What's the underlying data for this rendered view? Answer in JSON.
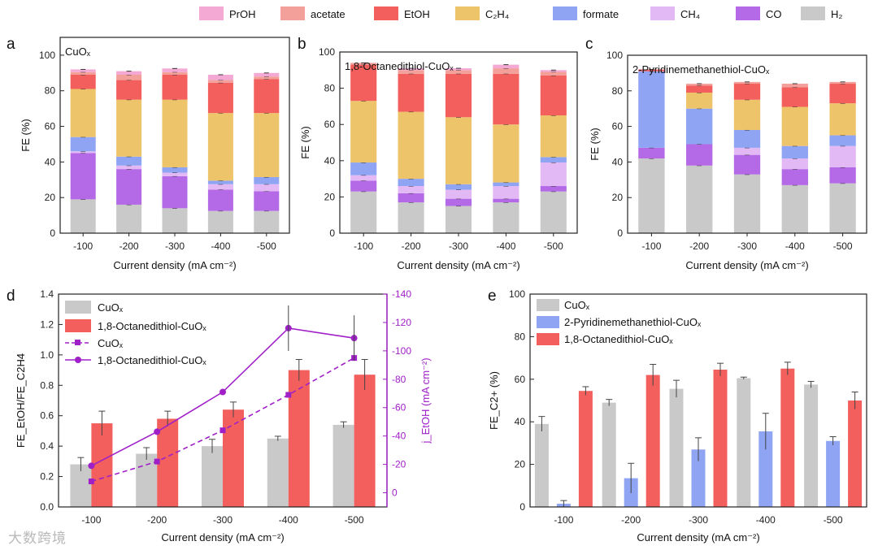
{
  "top_legend": [
    {
      "label": "PrOH",
      "color": "#f4a9d4"
    },
    {
      "label": "acetate",
      "color": "#f4a09a"
    },
    {
      "label": "EtOH",
      "color": "#f25f5c"
    },
    {
      "label": "C₂H₄",
      "color": "#eec46a"
    },
    {
      "label": "formate",
      "color": "#8fa4f2"
    },
    {
      "label": "CH₄",
      "color": "#e2b9f5"
    },
    {
      "label": "CO",
      "color": "#b46ae6"
    },
    {
      "label": "H₂",
      "color": "#c9c9c9"
    }
  ],
  "watermark": "大数跨境",
  "chart_data": [
    {
      "panel": "a",
      "type": "bar",
      "stacked": true,
      "inset_label": "CuOₓ",
      "categories": [
        "-100",
        "-200",
        "-300",
        "-400",
        "-500"
      ],
      "xlabel": "Current density (mA cm⁻²)",
      "ylabel": "FE (%)",
      "ylim": [
        0,
        110
      ],
      "yticks": [
        0,
        20,
        40,
        60,
        80,
        100
      ],
      "series": [
        {
          "name": "H₂",
          "values": [
            19,
            16,
            14,
            12.5,
            12.5
          ]
        },
        {
          "name": "CO",
          "values": [
            26,
            20,
            18,
            12,
            11
          ]
        },
        {
          "name": "CH₄",
          "values": [
            1,
            2,
            2,
            3,
            4
          ]
        },
        {
          "name": "formate",
          "values": [
            8,
            5,
            3,
            2,
            4
          ]
        },
        {
          "name": "C₂H₄",
          "values": [
            27,
            32,
            38,
            38,
            36
          ]
        },
        {
          "name": "EtOH",
          "values": [
            8,
            11,
            14,
            17,
            19
          ]
        },
        {
          "name": "acetate",
          "values": [
            1.5,
            3,
            1.5,
            1.5,
            1.5
          ]
        },
        {
          "name": "PrOH",
          "values": [
            1.5,
            2,
            2,
            3,
            2
          ]
        }
      ]
    },
    {
      "panel": "b",
      "type": "bar",
      "stacked": true,
      "inset_label": "1,8-Octanedithiol-CuOₓ",
      "categories": [
        "-100",
        "-200",
        "-300",
        "-400",
        "-500"
      ],
      "xlabel": "Current density (mA cm⁻²)",
      "ylabel": "FE (%)",
      "ylim": [
        0,
        100
      ],
      "yticks": [
        0,
        20,
        40,
        60,
        80,
        100
      ],
      "series": [
        {
          "name": "H₂",
          "values": [
            23,
            17,
            15,
            17,
            23
          ]
        },
        {
          "name": "CO",
          "values": [
            6,
            5,
            4,
            2,
            3
          ]
        },
        {
          "name": "CH₄",
          "values": [
            3,
            4,
            5,
            7,
            13
          ]
        },
        {
          "name": "formate",
          "values": [
            7,
            4,
            3,
            2,
            3
          ]
        },
        {
          "name": "C₂H₄",
          "values": [
            34,
            37,
            37,
            32,
            23
          ]
        },
        {
          "name": "EtOH",
          "values": [
            20,
            21,
            24,
            28,
            22
          ]
        },
        {
          "name": "acetate",
          "values": [
            1,
            2,
            2,
            3,
            2
          ]
        },
        {
          "name": "PrOH",
          "values": [
            0,
            1,
            1,
            2,
            1
          ]
        }
      ]
    },
    {
      "panel": "c",
      "type": "bar",
      "stacked": true,
      "inset_label": "2-Pyridinemethanethiol-CuOₓ",
      "categories": [
        "-100",
        "-200",
        "-300",
        "-400",
        "-500"
      ],
      "xlabel": "Current density (mA cm⁻²)",
      "ylabel": "FE (%)",
      "ylim": [
        0,
        100
      ],
      "yticks": [
        0,
        20,
        40,
        60,
        80,
        100
      ],
      "series": [
        {
          "name": "H₂",
          "values": [
            42,
            38,
            33,
            27,
            28
          ]
        },
        {
          "name": "CO",
          "values": [
            6,
            12,
            11,
            9,
            9
          ]
        },
        {
          "name": "CH₄",
          "values": [
            0,
            0,
            4,
            6,
            12
          ]
        },
        {
          "name": "formate",
          "values": [
            43,
            20,
            10,
            7,
            6
          ]
        },
        {
          "name": "C₂H₄",
          "values": [
            0,
            9,
            17,
            22,
            18
          ]
        },
        {
          "name": "EtOH",
          "values": [
            1,
            4,
            9,
            11,
            11
          ]
        },
        {
          "name": "acetate",
          "values": [
            0,
            1,
            1,
            2,
            1
          ]
        },
        {
          "name": "PrOH",
          "values": [
            0,
            0,
            0,
            0,
            0
          ]
        }
      ]
    },
    {
      "panel": "d",
      "type": "bar",
      "categories": [
        "-100",
        "-200",
        "-300",
        "-400",
        "-500"
      ],
      "xlabel": "Current density (mA cm⁻²)",
      "ylabel": "FE_EtOH/FE_C2H4",
      "ylim": [
        0,
        1.4
      ],
      "yticks": [
        0,
        0.2,
        0.4,
        0.6,
        0.8,
        1.0,
        1.2,
        1.4
      ],
      "y2label": "j_EtOH (mA cm⁻²)",
      "y2lim": [
        10,
        -140
      ],
      "y2ticks": [
        0,
        -20,
        -40,
        -60,
        -80,
        -100,
        -120,
        -140
      ],
      "series": [
        {
          "name": "CuOₓ",
          "kind": "bar",
          "values": [
            0.28,
            0.35,
            0.4,
            0.45,
            0.54
          ],
          "errors": [
            0.045,
            0.04,
            0.045,
            0.015,
            0.02
          ]
        },
        {
          "name": "1,8-Octanedithiol-CuOₓ",
          "kind": "bar",
          "values": [
            0.55,
            0.58,
            0.64,
            0.9,
            0.87
          ],
          "errors": [
            0.08,
            0.05,
            0.05,
            0.07,
            0.1
          ]
        },
        {
          "name": "CuOₓ",
          "kind": "dashed-line",
          "axis": "right",
          "values": [
            -8,
            -22,
            -44,
            -69,
            -95
          ]
        },
        {
          "name": "1,8-Octanedithiol-CuOₓ",
          "kind": "line",
          "axis": "right",
          "values": [
            -19,
            -43,
            -71,
            -116,
            -109
          ]
        }
      ]
    },
    {
      "panel": "e",
      "type": "bar",
      "categories": [
        "-100",
        "-200",
        "-300",
        "-400",
        "-500"
      ],
      "xlabel": "Current density (mA cm⁻²)",
      "ylabel": "FE_C2+ (%)",
      "ylim": [
        0,
        100
      ],
      "yticks": [
        0,
        20,
        40,
        60,
        80,
        100
      ],
      "series": [
        {
          "name": "CuOₓ",
          "values": [
            39,
            49,
            55.5,
            60.5,
            57.5
          ],
          "errors": [
            3.5,
            1.5,
            4,
            0.5,
            1.5
          ]
        },
        {
          "name": "2-Pyridinemethanethiol-CuOₓ",
          "values": [
            1.5,
            13.5,
            27,
            35.5,
            31
          ],
          "errors": [
            1.5,
            7,
            5.5,
            8.5,
            2
          ]
        },
        {
          "name": "1,8-Octanedithiol-CuOₓ",
          "values": [
            54.5,
            62,
            64.5,
            65,
            50
          ],
          "errors": [
            2,
            5,
            3,
            3,
            4
          ]
        }
      ]
    }
  ]
}
